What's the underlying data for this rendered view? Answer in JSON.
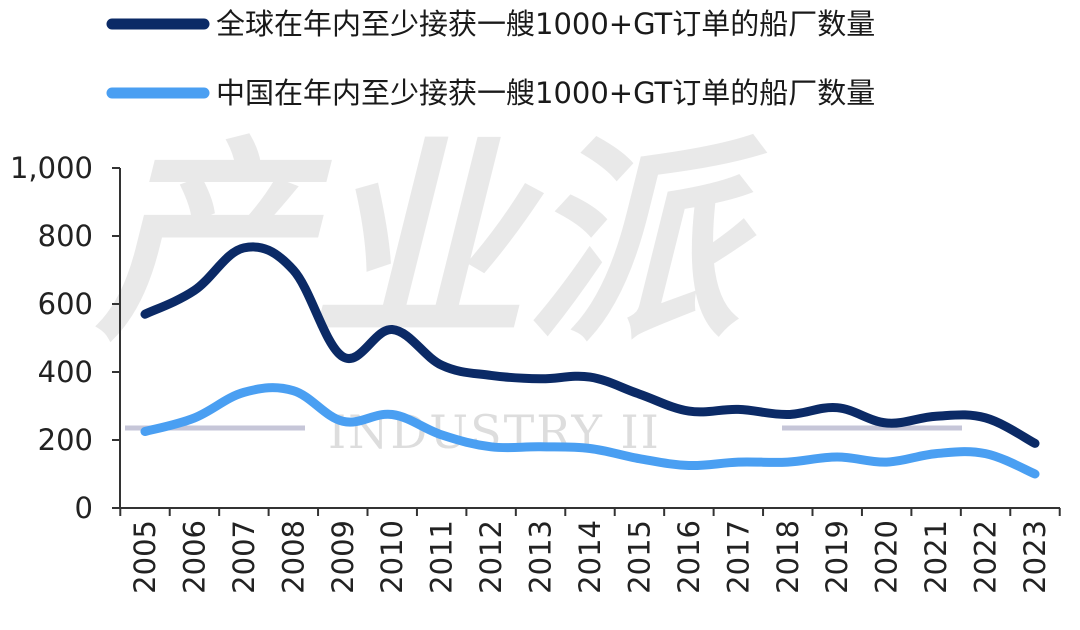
{
  "watermark": {
    "main": "产业派",
    "sub": "INDUSTRY II"
  },
  "chart_data": {
    "type": "line",
    "title": "",
    "xlabel": "",
    "ylabel": "",
    "categories": [
      "2005",
      "2006",
      "2007",
      "2008",
      "2009",
      "2010",
      "2011",
      "2012",
      "2013",
      "2014",
      "2015",
      "2016",
      "2017",
      "2018",
      "2019",
      "2020",
      "2021",
      "2022",
      "2023"
    ],
    "ylim": [
      0,
      1000
    ],
    "yticks": [
      0,
      200,
      400,
      600,
      800,
      1000
    ],
    "ytick_labels": [
      "0",
      "200",
      "400",
      "600",
      "800",
      "1,000"
    ],
    "legend_position": "top",
    "grid": false,
    "series": [
      {
        "name": "全球在年内至少接获一艘1000+GT订单的船厂数量",
        "color": "#0b2a66",
        "values": [
          570,
          640,
          765,
          700,
          445,
          525,
          420,
          390,
          380,
          385,
          335,
          285,
          290,
          275,
          295,
          250,
          270,
          265,
          190
        ]
      },
      {
        "name": "中国在年内至少接获一艘1000+GT订单的船厂数量",
        "color": "#4a9ff2",
        "values": [
          225,
          265,
          340,
          345,
          255,
          275,
          215,
          180,
          180,
          175,
          145,
          125,
          135,
          135,
          150,
          135,
          160,
          160,
          100
        ]
      }
    ]
  }
}
